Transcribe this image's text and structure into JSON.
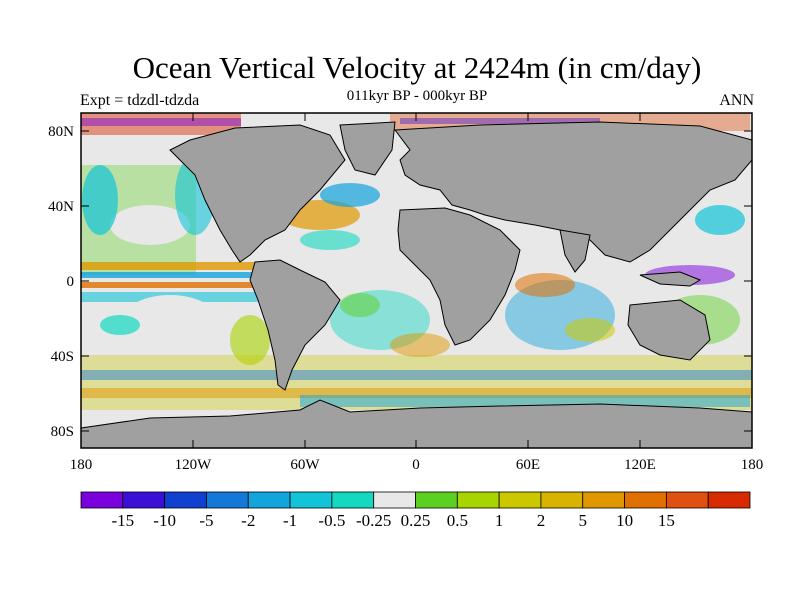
{
  "title": "Ocean Vertical Velocity at 2424m (in cm/day)",
  "experiment": "Expt = tdzdl-tdzda",
  "period": "011kyr BP - 000kyr BP",
  "season": "ANN",
  "map": {
    "lat_labels": [
      "80N",
      "40N",
      "0",
      "40S",
      "80S"
    ],
    "lon_labels": [
      "180",
      "120W",
      "60W",
      "0",
      "60E",
      "120E",
      "180"
    ],
    "land_color": "#a0a0a0"
  },
  "colorbar": {
    "colors": [
      "#7a00dc",
      "#3a10d8",
      "#1040d0",
      "#1478d8",
      "#12a4dc",
      "#12c4d8",
      "#14d8c0",
      "#e8e8e8",
      "#5cd020",
      "#a8d400",
      "#ccc800",
      "#d8b400",
      "#e09800",
      "#e07000",
      "#e05010",
      "#d82a00"
    ],
    "labels": [
      "-15",
      "-10",
      "-5",
      "-2",
      "-1",
      "-0.5",
      "-0.25",
      "0.25",
      "0.5",
      "1",
      "2",
      "5",
      "10",
      "15"
    ]
  }
}
